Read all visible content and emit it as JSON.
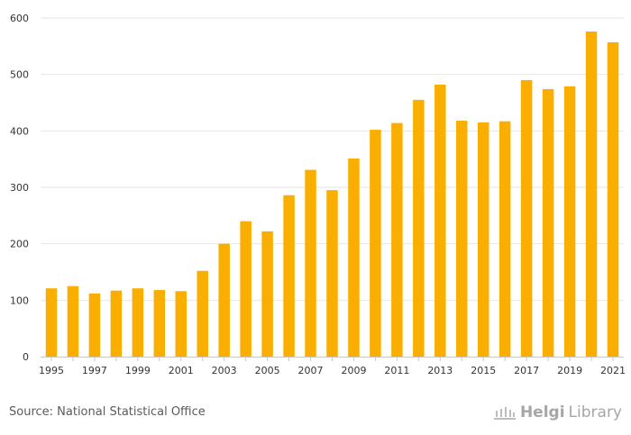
{
  "chart_data": {
    "type": "bar",
    "title": "",
    "xlabel": "",
    "ylabel": "",
    "categories": [
      "1995",
      "1996",
      "1997",
      "1998",
      "1999",
      "2000",
      "2001",
      "2002",
      "2003",
      "2004",
      "2005",
      "2006",
      "2007",
      "2008",
      "2009",
      "2010",
      "2011",
      "2012",
      "2013",
      "2014",
      "2015",
      "2016",
      "2017",
      "2018",
      "2019",
      "2020",
      "2021"
    ],
    "values": [
      121,
      125,
      112,
      117,
      121,
      118,
      116,
      152,
      200,
      240,
      222,
      286,
      331,
      295,
      351,
      402,
      414,
      455,
      482,
      418,
      415,
      417,
      490,
      474,
      479,
      576,
      557
    ],
    "x_tick_labels": [
      "1995",
      "1997",
      "1999",
      "2001",
      "2003",
      "2005",
      "2007",
      "2009",
      "2011",
      "2013",
      "2015",
      "2017",
      "2019",
      "2021"
    ],
    "y_ticks": [
      0,
      100,
      200,
      300,
      400,
      500,
      600
    ],
    "ylim": [
      0,
      600
    ],
    "grid": true,
    "bar_color": "#F9AE00"
  },
  "footer": {
    "source": "Source: National Statistical Office"
  },
  "logo": {
    "part1": "Helgi",
    "part2": "Library"
  }
}
